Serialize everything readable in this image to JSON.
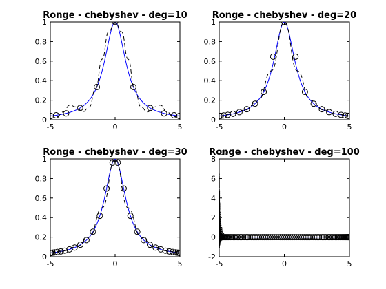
{
  "chart_data": [
    {
      "type": "line",
      "title": "Ronge -  chebyshev - deg=10",
      "xlim": [
        -5,
        5
      ],
      "ylim": [
        0,
        1
      ],
      "xticks": [
        "-5",
        "0",
        "5"
      ],
      "yticks": [
        "0",
        "0.2",
        "0.4",
        "0.6",
        "0.8",
        "1"
      ],
      "grid": false,
      "series": [
        {
          "style": "solid-blue",
          "function": "1/(1+x^2)",
          "x": [
            -5,
            -4,
            -3,
            -2,
            -1,
            0,
            1,
            2,
            3,
            4,
            5
          ],
          "y": [
            0.038,
            0.059,
            0.1,
            0.2,
            0.5,
            1,
            0.5,
            0.2,
            0.1,
            0.059,
            0.038
          ]
        },
        {
          "style": "dashed-black",
          "x": [
            -5,
            -4.5,
            -4,
            -3.5,
            -3,
            -2.5,
            -2,
            -1.5,
            -1,
            -0.5,
            0,
            0.5,
            1,
            1.5,
            2,
            2.5,
            3,
            3.5,
            4,
            4.5,
            5
          ],
          "y": [
            0.04,
            0.03,
            0.08,
            0.15,
            0.13,
            0.08,
            0.13,
            0.32,
            0.62,
            0.9,
            1,
            0.9,
            0.62,
            0.32,
            0.13,
            0.08,
            0.13,
            0.15,
            0.08,
            0.03,
            0.04
          ]
        },
        {
          "style": "circle-markers",
          "x": [
            -4.949,
            -4.548,
            -3.779,
            -2.703,
            -1.409,
            0,
            1.409,
            2.703,
            3.779,
            4.548,
            4.949
          ],
          "y": [
            0.039,
            0.046,
            0.065,
            0.12,
            0.335,
            1,
            0.335,
            0.12,
            0.065,
            0.046,
            0.039
          ]
        }
      ]
    },
    {
      "type": "line",
      "title": "Ronge -  chebyshev - deg=20",
      "xlim": [
        -5,
        5
      ],
      "ylim": [
        0,
        1
      ],
      "xticks": [
        "-5",
        "0",
        "5"
      ],
      "yticks": [
        "0",
        "0.2",
        "0.4",
        "0.6",
        "0.8",
        "1"
      ],
      "grid": false,
      "series": [
        {
          "style": "solid-blue",
          "function": "1/(1+x^2)",
          "x": [
            -5,
            -4,
            -3,
            -2,
            -1,
            0,
            1,
            2,
            3,
            4,
            5
          ],
          "y": [
            0.038,
            0.059,
            0.1,
            0.2,
            0.5,
            1,
            0.5,
            0.2,
            0.1,
            0.059,
            0.038
          ]
        },
        {
          "style": "dashed-black",
          "x": [
            -5,
            -4,
            -3,
            -2,
            -1,
            0,
            1,
            2,
            3,
            4,
            5
          ],
          "y": [
            0.038,
            0.059,
            0.1,
            0.2,
            0.5,
            1,
            0.5,
            0.2,
            0.1,
            0.059,
            0.038
          ]
        },
        {
          "style": "circle-markers",
          "x": [
            -4.986,
            -4.877,
            -4.662,
            -4.346,
            -3.937,
            -3.444,
            -2.879,
            -2.254,
            -1.582,
            -0.857,
            0,
            0.857,
            1.582,
            2.254,
            2.879,
            3.444,
            3.937,
            4.346,
            4.662,
            4.877,
            4.986
          ],
          "y": [
            0.039,
            0.04,
            0.044,
            0.05,
            0.061,
            0.078,
            0.108,
            0.164,
            0.285,
            0.645,
            1,
            0.645,
            0.285,
            0.164,
            0.108,
            0.078,
            0.061,
            0.05,
            0.044,
            0.04,
            0.039
          ]
        }
      ]
    },
    {
      "type": "line",
      "title": "Ronge -  chebyshev - deg=30",
      "xlim": [
        -5,
        5
      ],
      "ylim": [
        0,
        1
      ],
      "xticks": [
        "-5",
        "0",
        "5"
      ],
      "yticks": [
        "0",
        "0.2",
        "0.4",
        "0.6",
        "0.8",
        "1"
      ],
      "grid": false,
      "series": [
        {
          "style": "solid-blue",
          "function": "1/(1+x^2)",
          "x": [
            -5,
            -4,
            -3,
            -2,
            -1,
            0,
            1,
            2,
            3,
            4,
            5
          ],
          "y": [
            0.038,
            0.059,
            0.1,
            0.2,
            0.5,
            1,
            0.5,
            0.2,
            0.1,
            0.059,
            0.038
          ]
        },
        {
          "style": "dashed-black",
          "x": [
            -5,
            -4,
            -3,
            -2,
            -1,
            0,
            1,
            2,
            3,
            4,
            5
          ],
          "y": [
            0.038,
            0.059,
            0.1,
            0.2,
            0.5,
            1,
            0.5,
            0.2,
            0.1,
            0.059,
            0.038
          ]
        },
        {
          "style": "circle-markers",
          "x": [
            -4.993,
            -4.938,
            -4.83,
            -4.669,
            -4.455,
            -4.191,
            -3.88,
            -3.523,
            -3.124,
            -2.686,
            -2.213,
            -1.71,
            -1.18,
            -0.66,
            -0.2,
            0,
            0.2,
            0.66,
            1.18,
            1.71,
            2.213,
            2.686,
            3.124,
            3.523,
            3.88,
            4.191,
            4.455,
            4.669,
            4.83,
            4.938,
            4.993
          ],
          "y": [
            0.038,
            0.039,
            0.041,
            0.044,
            0.048,
            0.054,
            0.062,
            0.075,
            0.093,
            0.122,
            0.17,
            0.255,
            0.418,
            0.697,
            0.962,
            1,
            0.962,
            0.697,
            0.418,
            0.255,
            0.17,
            0.122,
            0.093,
            0.075,
            0.062,
            0.054,
            0.048,
            0.044,
            0.041,
            0.039,
            0.038
          ]
        }
      ]
    },
    {
      "type": "line",
      "title": "Ronge -  chebyshev - deg=100",
      "exponent_label": "10^14",
      "xlim": [
        -5,
        5
      ],
      "ylim": [
        -2,
        8
      ],
      "xticks": [
        "-5",
        "0",
        "5"
      ],
      "yticks": [
        "-2",
        "0",
        "2",
        "4",
        "6",
        "8"
      ],
      "grid": false,
      "series": [
        {
          "style": "dashed-black-oscillation",
          "x": [
            -5,
            -4.99,
            -4.98,
            -4.97,
            -4.96,
            -4.95,
            -4.94,
            -4.93,
            -4.92,
            -4.9,
            -4.88,
            -4.86,
            -4.83,
            -4.8,
            -4.77,
            -4.74,
            -4.7,
            -4.65,
            -4.6,
            -4.5,
            -4.4,
            -4.3,
            -4.2,
            -4.1,
            -4.0
          ],
          "y": [
            0,
            6.6,
            -1.1,
            4.8,
            -0.9,
            3.5,
            -0.8,
            2.6,
            -0.6,
            1.9,
            -0.5,
            1.4,
            -0.4,
            1.0,
            -0.3,
            0.7,
            -0.2,
            0.4,
            -0.1,
            0.2,
            -0.05,
            0.1,
            -0.02,
            0.04,
            0
          ]
        },
        {
          "style": "solid-blue",
          "x": [
            -5,
            5
          ],
          "y": [
            0,
            0
          ]
        },
        {
          "style": "circle-markers",
          "count": 101,
          "y_all": 0
        }
      ]
    }
  ]
}
